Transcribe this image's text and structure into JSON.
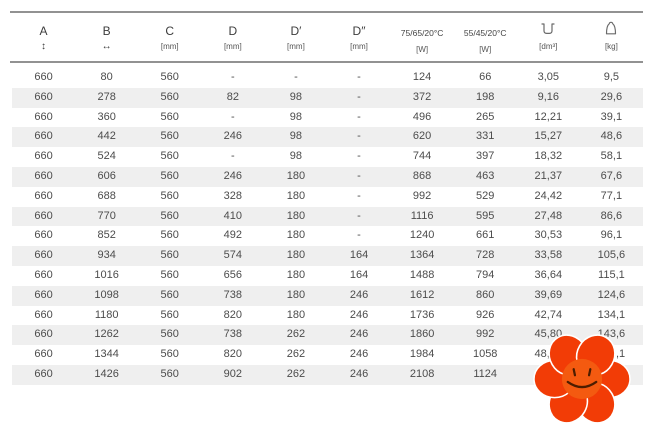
{
  "table": {
    "columns": [
      {
        "label": "A",
        "sub": "↕"
      },
      {
        "label": "B",
        "sub": "↔"
      },
      {
        "label": "C",
        "sub": "[mm]"
      },
      {
        "label": "D",
        "sub": "[mm]"
      },
      {
        "label": "D′",
        "sub": "[mm]"
      },
      {
        "label": "D″",
        "sub": "[mm]"
      },
      {
        "label": "75/65/20°C",
        "sub": "[W]"
      },
      {
        "label": "55/45/20°C",
        "sub": "[W]"
      },
      {
        "label": "volume-icon",
        "sub": "[dm³]"
      },
      {
        "label": "weight-icon",
        "sub": "[kg]"
      }
    ],
    "rows": [
      [
        "660",
        "80",
        "560",
        "-",
        "-",
        "-",
        "124",
        "66",
        "3,05",
        "9,5"
      ],
      [
        "660",
        "278",
        "560",
        "82",
        "98",
        "-",
        "372",
        "198",
        "9,16",
        "29,6"
      ],
      [
        "660",
        "360",
        "560",
        "-",
        "98",
        "-",
        "496",
        "265",
        "12,21",
        "39,1"
      ],
      [
        "660",
        "442",
        "560",
        "246",
        "98",
        "-",
        "620",
        "331",
        "15,27",
        "48,6"
      ],
      [
        "660",
        "524",
        "560",
        "-",
        "98",
        "-",
        "744",
        "397",
        "18,32",
        "58,1"
      ],
      [
        "660",
        "606",
        "560",
        "246",
        "180",
        "-",
        "868",
        "463",
        "21,37",
        "67,6"
      ],
      [
        "660",
        "688",
        "560",
        "328",
        "180",
        "-",
        "992",
        "529",
        "24,42",
        "77,1"
      ],
      [
        "660",
        "770",
        "560",
        "410",
        "180",
        "-",
        "1116",
        "595",
        "27,48",
        "86,6"
      ],
      [
        "660",
        "852",
        "560",
        "492",
        "180",
        "-",
        "1240",
        "661",
        "30,53",
        "96,1"
      ],
      [
        "660",
        "934",
        "560",
        "574",
        "180",
        "164",
        "1364",
        "728",
        "33,58",
        "105,6"
      ],
      [
        "660",
        "1016",
        "560",
        "656",
        "180",
        "164",
        "1488",
        "794",
        "36,64",
        "115,1"
      ],
      [
        "660",
        "1098",
        "560",
        "738",
        "180",
        "246",
        "1612",
        "860",
        "39,69",
        "124,6"
      ],
      [
        "660",
        "1180",
        "560",
        "820",
        "180",
        "246",
        "1736",
        "926",
        "42,74",
        "134,1"
      ],
      [
        "660",
        "1262",
        "560",
        "738",
        "262",
        "246",
        "1860",
        "992",
        "45,80",
        "143,6"
      ],
      [
        "660",
        "1344",
        "560",
        "820",
        "262",
        "246",
        "1984",
        "1058",
        "48,85",
        "153,1"
      ],
      [
        "660",
        "1426",
        "560",
        "902",
        "262",
        "246",
        "2108",
        "1124",
        "",
        ""
      ]
    ]
  },
  "sticker": {
    "type": "flower-smiley",
    "petal_color": "#f23c06",
    "center_color": "#f45a10",
    "face_color": "#4d1d00"
  },
  "colors": {
    "row_shading": "#efefef",
    "rule_line": "#929292",
    "text": "#4c4c4c"
  }
}
